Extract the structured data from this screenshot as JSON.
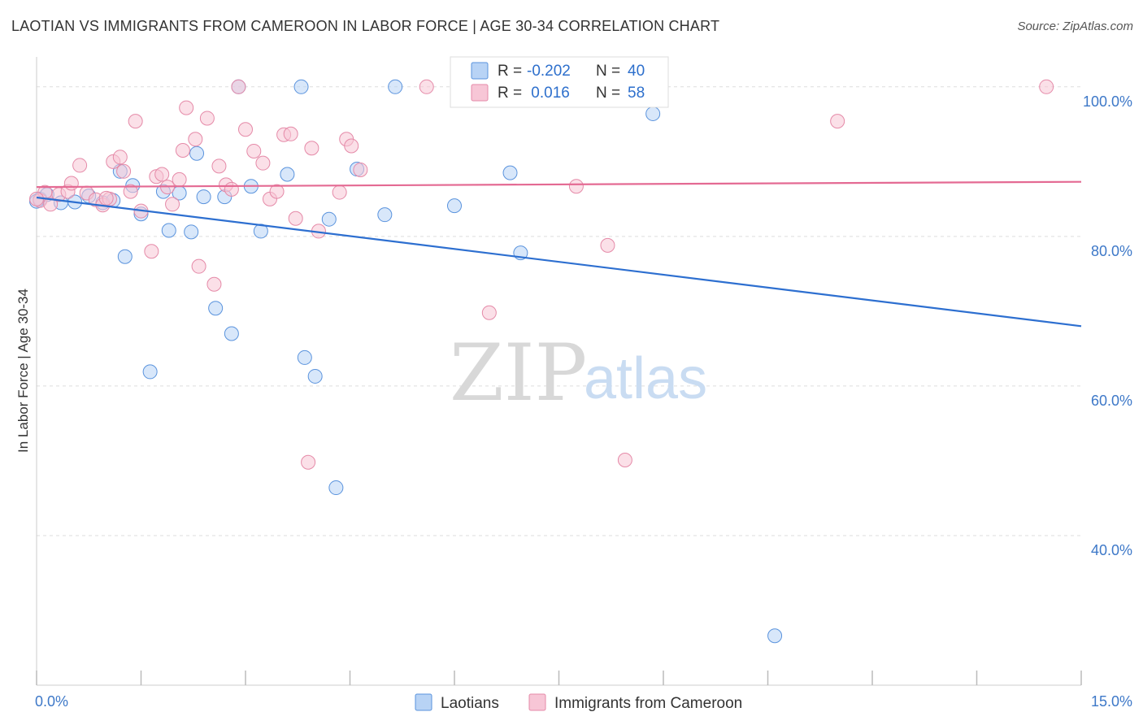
{
  "header": {
    "title": "LAOTIAN VS IMMIGRANTS FROM CAMEROON IN LABOR FORCE | AGE 30-34 CORRELATION CHART",
    "source": "Source: ZipAtlas.com"
  },
  "watermark": {
    "zip": "ZIP",
    "atlas": "atlas"
  },
  "colors": {
    "laotian_fill": "#b8d3f5",
    "laotian_stroke": "#5a93dd",
    "laotian_line": "#2d6fd0",
    "cameroon_fill": "#f7c6d6",
    "cameroon_stroke": "#e58aa8",
    "cameroon_line": "#e46a93",
    "axis_label": "#3d78c8",
    "grid": "#dddddd"
  },
  "legend": {
    "rows": [
      {
        "r_label": "R = ",
        "r_value": "-0.202",
        "n_label": "N = ",
        "n_value": "40"
      },
      {
        "r_label": "R = ",
        "r_value": " 0.016",
        "n_label": "N = ",
        "n_value": "58"
      }
    ]
  },
  "chart_data": {
    "type": "scatter",
    "title": "LAOTIAN VS IMMIGRANTS FROM CAMEROON IN LABOR FORCE | AGE 30-34 CORRELATION CHART",
    "xlabel": "",
    "ylabel": "In Labor Force | Age 30-34",
    "xlim": [
      0,
      15
    ],
    "ylim": [
      20,
      104
    ],
    "x_tick_labels": [
      "0.0%",
      "15.0%"
    ],
    "y_ticks": [
      40,
      60,
      80,
      100
    ],
    "y_tick_labels": [
      "40.0%",
      "60.0%",
      "80.0%",
      "100.0%"
    ],
    "grid": true,
    "legend_position": "top-center",
    "series": [
      {
        "name": "Laotians",
        "R": -0.202,
        "N": 40,
        "trend": {
          "x": [
            0,
            15
          ],
          "y": [
            85.2,
            68.0
          ]
        },
        "points": [
          {
            "x": 0.05,
            "y": 85.0
          },
          {
            "x": 0.15,
            "y": 85.6
          },
          {
            "x": 0.35,
            "y": 84.5
          },
          {
            "x": 0.55,
            "y": 84.6
          },
          {
            "x": 0.75,
            "y": 85.4
          },
          {
            "x": 0.95,
            "y": 84.5
          },
          {
            "x": 1.1,
            "y": 84.8
          },
          {
            "x": 1.2,
            "y": 88.7
          },
          {
            "x": 1.27,
            "y": 77.3
          },
          {
            "x": 1.38,
            "y": 86.8
          },
          {
            "x": 1.5,
            "y": 83.0
          },
          {
            "x": 1.63,
            "y": 61.9
          },
          {
            "x": 1.82,
            "y": 86.0
          },
          {
            "x": 1.9,
            "y": 80.8
          },
          {
            "x": 2.05,
            "y": 85.8
          },
          {
            "x": 2.22,
            "y": 80.6
          },
          {
            "x": 2.3,
            "y": 91.1
          },
          {
            "x": 2.4,
            "y": 85.3
          },
          {
            "x": 2.57,
            "y": 70.4
          },
          {
            "x": 2.7,
            "y": 85.3
          },
          {
            "x": 2.8,
            "y": 67.0
          },
          {
            "x": 2.9,
            "y": 100.0
          },
          {
            "x": 3.08,
            "y": 86.7
          },
          {
            "x": 3.22,
            "y": 80.7
          },
          {
            "x": 3.6,
            "y": 88.3
          },
          {
            "x": 3.8,
            "y": 100.0
          },
          {
            "x": 3.85,
            "y": 63.8
          },
          {
            "x": 4.0,
            "y": 61.3
          },
          {
            "x": 4.2,
            "y": 82.3
          },
          {
            "x": 4.3,
            "y": 46.4
          },
          {
            "x": 4.6,
            "y": 89.0
          },
          {
            "x": 5.0,
            "y": 82.9
          },
          {
            "x": 5.15,
            "y": 100.0
          },
          {
            "x": 6.0,
            "y": 84.1
          },
          {
            "x": 6.8,
            "y": 88.5
          },
          {
            "x": 6.95,
            "y": 77.8
          },
          {
            "x": 8.2,
            "y": 100.0
          },
          {
            "x": 8.85,
            "y": 96.4
          },
          {
            "x": 10.6,
            "y": 26.6
          },
          {
            "x": 0.0,
            "y": 84.7
          }
        ]
      },
      {
        "name": "Immigrants from Cameroon",
        "R": 0.016,
        "N": 58,
        "trend": {
          "x": [
            0,
            15
          ],
          "y": [
            86.6,
            87.3
          ]
        },
        "points": [
          {
            "x": 0.05,
            "y": 84.8
          },
          {
            "x": 0.12,
            "y": 85.9
          },
          {
            "x": 0.2,
            "y": 84.3
          },
          {
            "x": 0.32,
            "y": 85.6
          },
          {
            "x": 0.45,
            "y": 86.0
          },
          {
            "x": 0.5,
            "y": 87.1
          },
          {
            "x": 0.62,
            "y": 89.5
          },
          {
            "x": 0.72,
            "y": 85.8
          },
          {
            "x": 0.85,
            "y": 84.9
          },
          {
            "x": 0.95,
            "y": 84.2
          },
          {
            "x": 1.05,
            "y": 85.0
          },
          {
            "x": 1.1,
            "y": 90.0
          },
          {
            "x": 1.2,
            "y": 90.6
          },
          {
            "x": 1.25,
            "y": 88.7
          },
          {
            "x": 1.35,
            "y": 86.0
          },
          {
            "x": 1.42,
            "y": 95.4
          },
          {
            "x": 1.5,
            "y": 83.4
          },
          {
            "x": 1.65,
            "y": 78.0
          },
          {
            "x": 1.72,
            "y": 88.0
          },
          {
            "x": 1.8,
            "y": 88.3
          },
          {
            "x": 1.88,
            "y": 86.6
          },
          {
            "x": 1.95,
            "y": 84.3
          },
          {
            "x": 2.05,
            "y": 87.6
          },
          {
            "x": 2.1,
            "y": 91.5
          },
          {
            "x": 2.15,
            "y": 97.2
          },
          {
            "x": 2.28,
            "y": 93.0
          },
          {
            "x": 2.33,
            "y": 76.0
          },
          {
            "x": 2.45,
            "y": 95.8
          },
          {
            "x": 2.55,
            "y": 73.6
          },
          {
            "x": 2.62,
            "y": 89.4
          },
          {
            "x": 2.72,
            "y": 86.9
          },
          {
            "x": 2.8,
            "y": 86.3
          },
          {
            "x": 2.9,
            "y": 100.0
          },
          {
            "x": 3.0,
            "y": 94.3
          },
          {
            "x": 3.12,
            "y": 91.4
          },
          {
            "x": 3.25,
            "y": 89.8
          },
          {
            "x": 3.35,
            "y": 85.0
          },
          {
            "x": 3.45,
            "y": 86.0
          },
          {
            "x": 3.55,
            "y": 93.6
          },
          {
            "x": 3.65,
            "y": 93.7
          },
          {
            "x": 3.72,
            "y": 82.4
          },
          {
            "x": 3.9,
            "y": 49.8
          },
          {
            "x": 3.95,
            "y": 91.8
          },
          {
            "x": 4.05,
            "y": 80.7
          },
          {
            "x": 4.35,
            "y": 85.9
          },
          {
            "x": 4.45,
            "y": 93.0
          },
          {
            "x": 4.52,
            "y": 92.1
          },
          {
            "x": 4.65,
            "y": 88.9
          },
          {
            "x": 5.6,
            "y": 100.0
          },
          {
            "x": 6.5,
            "y": 69.8
          },
          {
            "x": 7.75,
            "y": 86.7
          },
          {
            "x": 8.2,
            "y": 78.8
          },
          {
            "x": 8.45,
            "y": 50.1
          },
          {
            "x": 8.9,
            "y": 100.0
          },
          {
            "x": 11.5,
            "y": 95.4
          },
          {
            "x": 14.5,
            "y": 100.0
          },
          {
            "x": 0.0,
            "y": 85.0
          },
          {
            "x": 1.0,
            "y": 85.1
          }
        ]
      }
    ]
  }
}
